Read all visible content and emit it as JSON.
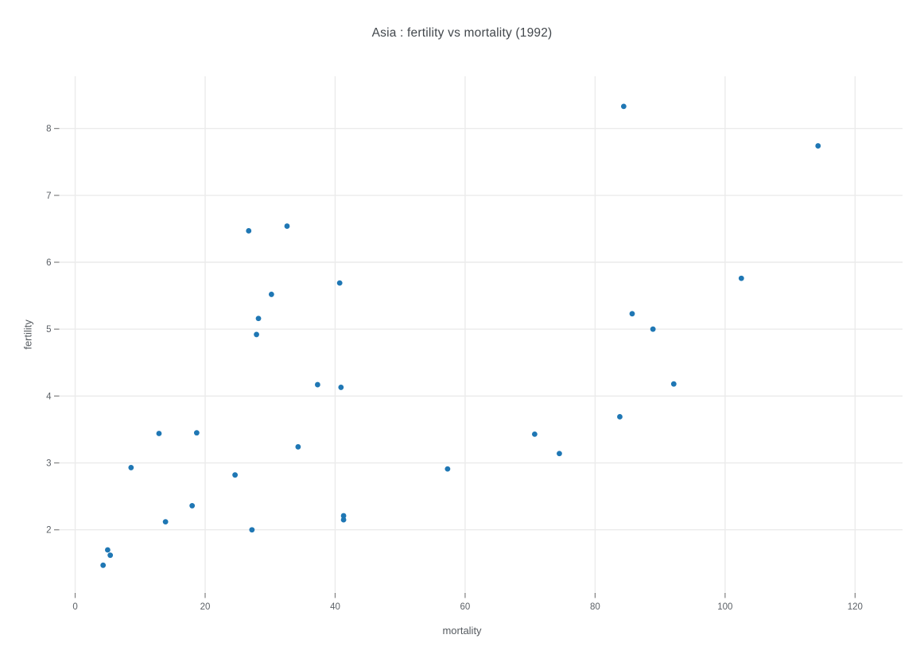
{
  "title": "Asia : fertility vs mortality (1992)",
  "x_axis": {
    "label": "mortality",
    "ticks": [
      0,
      20,
      40,
      60,
      80,
      100,
      120
    ]
  },
  "y_axis": {
    "label": "fertility",
    "ticks": [
      2,
      3,
      4,
      5,
      6,
      7,
      8
    ]
  },
  "colors": {
    "background": "#ffffff",
    "marker": "#1f77b4",
    "gridline": "#ebebeb",
    "tick": "#808080",
    "tick_label": "#5b6066",
    "axis_title": "#565b60",
    "title": "#42474c"
  },
  "chart_data": {
    "type": "scatter",
    "title": "Asia : fertility vs mortality (1992)",
    "xlabel": "mortality",
    "ylabel": "fertility",
    "x_ticks": [
      0,
      20,
      40,
      60,
      80,
      100,
      120
    ],
    "y_ticks": [
      2,
      3,
      4,
      5,
      6,
      7,
      8
    ],
    "xlim": [
      -2.45,
      127.3
    ],
    "ylim": [
      1.07,
      8.78
    ],
    "grid": true,
    "legend": false,
    "marker": {
      "color": "#1f77b4",
      "radius_px": 3.4
    },
    "series_name": "Asia 1992",
    "points": [
      [
        84.4,
        8.33
      ],
      [
        114.3,
        7.74
      ],
      [
        32.6,
        6.54
      ],
      [
        26.7,
        6.47
      ],
      [
        102.5,
        5.76
      ],
      [
        40.7,
        5.69
      ],
      [
        30.2,
        5.52
      ],
      [
        85.7,
        5.23
      ],
      [
        28.2,
        5.16
      ],
      [
        88.9,
        5.0
      ],
      [
        27.9,
        4.92
      ],
      [
        92.1,
        4.18
      ],
      [
        37.3,
        4.17
      ],
      [
        40.9,
        4.13
      ],
      [
        83.8,
        3.69
      ],
      [
        18.7,
        3.45
      ],
      [
        12.9,
        3.44
      ],
      [
        70.7,
        3.43
      ],
      [
        34.3,
        3.24
      ],
      [
        74.5,
        3.14
      ],
      [
        8.6,
        2.93
      ],
      [
        57.3,
        2.91
      ],
      [
        24.6,
        2.82
      ],
      [
        18.0,
        2.36
      ],
      [
        41.3,
        2.21
      ],
      [
        41.3,
        2.15
      ],
      [
        13.9,
        2.12
      ],
      [
        27.2,
        2.0
      ],
      [
        5.0,
        1.7
      ],
      [
        5.4,
        1.62
      ],
      [
        4.3,
        1.47
      ]
    ]
  }
}
